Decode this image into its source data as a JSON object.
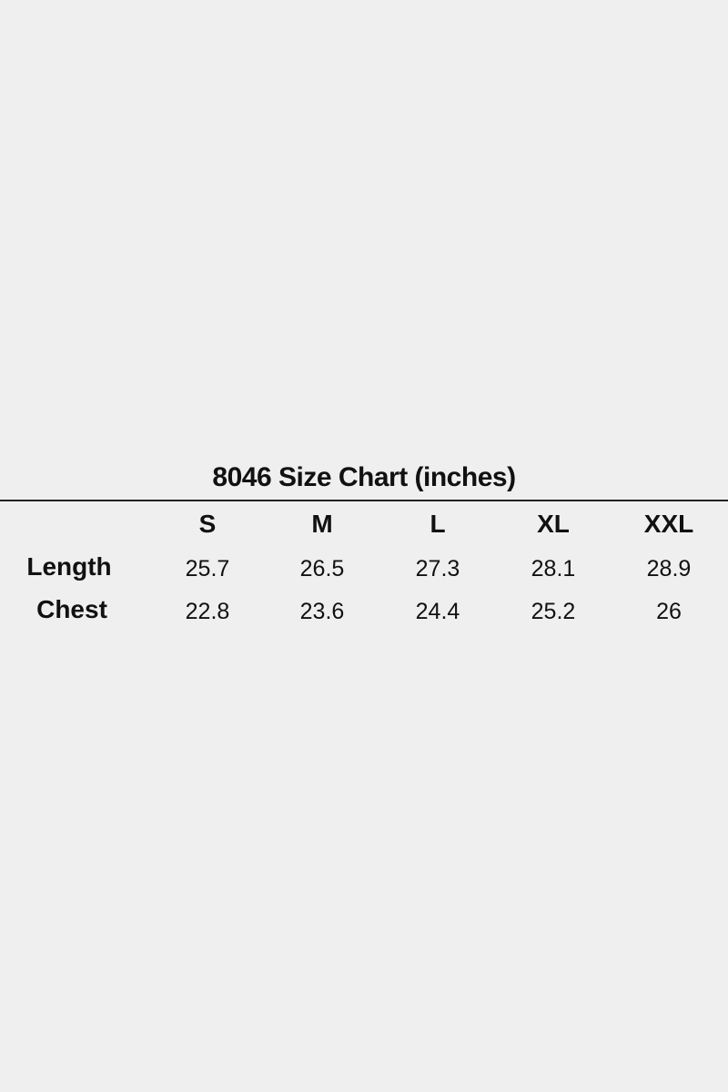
{
  "title": "8046 Size Chart (inches)",
  "table": {
    "columns": [
      "S",
      "M",
      "L",
      "XL",
      "XXL"
    ],
    "rows": [
      {
        "label": "Length",
        "values": [
          "25.7",
          "26.5",
          "27.3",
          "28.1",
          "28.9"
        ]
      },
      {
        "label": "Chest",
        "values": [
          "22.8",
          "23.6",
          "24.4",
          "25.2",
          "26"
        ]
      }
    ]
  }
}
